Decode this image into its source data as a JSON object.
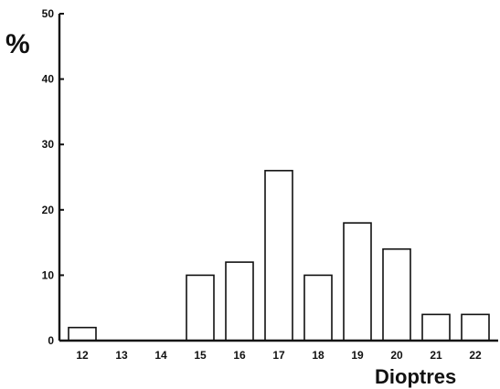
{
  "chart_data": {
    "type": "bar",
    "title": "",
    "xlabel": "Dioptres",
    "ylabel": "%",
    "categories": [
      "12",
      "13",
      "14",
      "15",
      "16",
      "17",
      "18",
      "19",
      "20",
      "21",
      "22"
    ],
    "values": [
      2,
      0,
      0,
      10,
      12,
      26,
      10,
      18,
      14,
      4,
      4
    ],
    "ylim": [
      0,
      50
    ],
    "yticks": [
      "0",
      "10",
      "20",
      "30",
      "40",
      "50"
    ],
    "grid": false,
    "legend": "none"
  }
}
